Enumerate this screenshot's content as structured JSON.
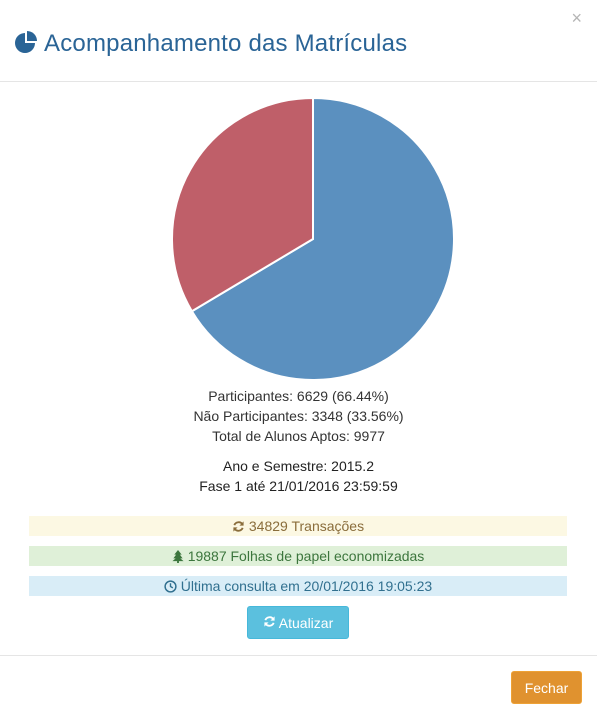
{
  "header": {
    "title": "Acompanhamento das Matrículas",
    "icon": "pie-chart-icon",
    "close_label": "×"
  },
  "chart_data": {
    "type": "pie",
    "slices": [
      {
        "label": "Participantes",
        "value": 6629,
        "percent": 66.44,
        "color": "#5b90bf"
      },
      {
        "label": "Não Participantes",
        "value": 3348,
        "percent": 33.56,
        "color": "#bf5f69"
      }
    ]
  },
  "stats": {
    "participantes": "Participantes: 6629 (66.44%)",
    "nao_participantes": "Não Participantes: 3348 (33.56%)",
    "total": "Total de Alunos Aptos: 9977"
  },
  "semester": {
    "line1": "Ano e Semestre: 2015.2",
    "line2": "Fase 1 até 21/01/2016 23:59:59"
  },
  "bars": {
    "transactions": {
      "text": "34829 Transações",
      "icon": "refresh-icon"
    },
    "paper": {
      "text": "19887 Folhas de papel economizadas",
      "icon": "tree-icon"
    },
    "last_query": {
      "text": "Última consulta em 20/01/2016 19:05:23",
      "icon": "clock-icon"
    }
  },
  "buttons": {
    "refresh_label": "Atualizar",
    "close_label": "Fechar"
  }
}
